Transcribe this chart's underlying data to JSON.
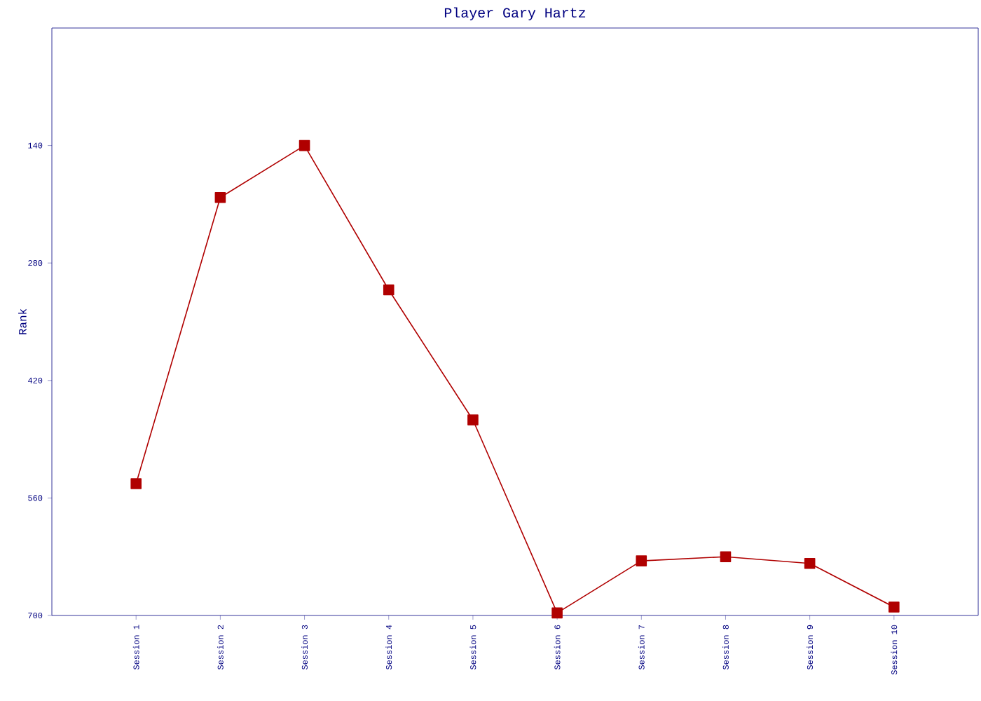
{
  "chart_data": {
    "type": "line",
    "title": "Player Gary Hartz",
    "ylabel": "Rank",
    "categories": [
      "Session 1",
      "Session 2",
      "Session 3",
      "Session 4",
      "Session 5",
      "Session 6",
      "Session 7",
      "Session 8",
      "Session 9",
      "Session 10"
    ],
    "series": [
      {
        "color": "#b00000",
        "values": [
          543,
          202,
          140,
          312,
          467,
          697,
          635,
          630,
          638,
          690
        ]
      }
    ],
    "ylim": [
      700,
      0
    ],
    "yticks": [
      140,
      280,
      420,
      560,
      700
    ],
    "marker": "square",
    "line_style": "solid"
  }
}
